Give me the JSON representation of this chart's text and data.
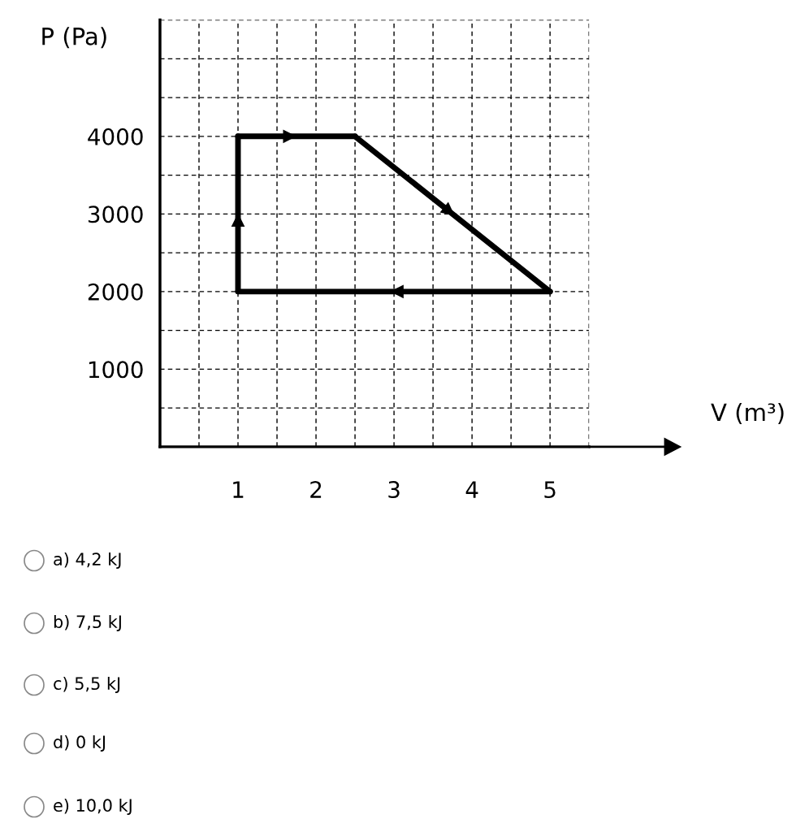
{
  "chart_data": {
    "type": "line",
    "ylabel": "P (Pa)",
    "series": [
      {
        "color": "#000000",
        "x": [
          1,
          1
        ],
        "values": [
          2000,
          4000
        ]
      },
      {
        "color": "#000000",
        "x": [
          1,
          2.5
        ],
        "values": [
          4000,
          4000
        ]
      },
      {
        "color": "#000000",
        "x": [
          2.5,
          5
        ],
        "values": [
          4000,
          2000
        ]
      },
      {
        "color": "#000000",
        "x": [
          5,
          1
        ],
        "values": [
          2000,
          2000
        ]
      }
    ],
    "xlim": [
      0,
      5.5
    ],
    "ylim": [
      0,
      5500
    ],
    "xticks": [
      {
        "value": 0.5,
        "label": null
      },
      1,
      {
        "value": 1.5,
        "label": null
      },
      2,
      {
        "value": 2.5,
        "label": null
      },
      3,
      {
        "value": 3.5,
        "label": null
      },
      4,
      {
        "value": 4.5,
        "label": null
      },
      5,
      {
        "value": 5.5,
        "label": null
      }
    ],
    "yticks": [
      {
        "value": 500,
        "label": null
      },
      1000,
      {
        "value": 1500,
        "label": null
      },
      2000,
      {
        "value": 2500,
        "label": null
      },
      3000,
      {
        "value": 3500,
        "label": null
      },
      4000,
      {
        "value": 4500,
        "label": null
      },
      {
        "value": 5000,
        "label": null
      },
      {
        "value": 5500,
        "label": null
      }
    ],
    "grid": true,
    "marker": "none",
    "line_style": "solid",
    "annotations": [
      "V (m³)",
      "a) 4,2 kJ",
      "b) 7,5 kJ",
      "c) 5,5 kJ",
      "d) 0 kJ",
      "e) 10,0 kJ"
    ]
  }
}
